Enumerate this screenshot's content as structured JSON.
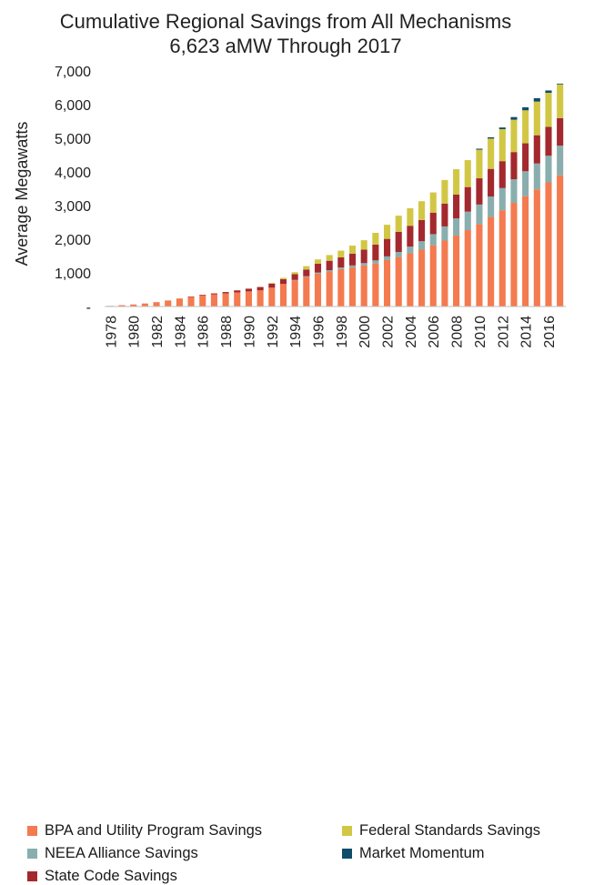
{
  "chart_data": {
    "type": "bar",
    "stacked": true,
    "title": "Cumulative Regional Savings from All Mechanisms",
    "subtitle": "6,623 aMW Through 2017",
    "xlabel": "",
    "ylabel": "Average Megawatts",
    "ylim": [
      0,
      7000
    ],
    "yticks": [
      0,
      1000,
      2000,
      3000,
      4000,
      5000,
      6000,
      7000
    ],
    "ytick_labels": [
      "-",
      "1,000",
      "2,000",
      "3,000",
      "4,000",
      "5,000",
      "6,000",
      "7,000"
    ],
    "grid": false,
    "legend_position": "bottom",
    "categories": [
      "1978",
      "1979",
      "1980",
      "1981",
      "1982",
      "1983",
      "1984",
      "1985",
      "1986",
      "1987",
      "1988",
      "1989",
      "1990",
      "1991",
      "1992",
      "1993",
      "1994",
      "1995",
      "1996",
      "1997",
      "1998",
      "1999",
      "2000",
      "2001",
      "2002",
      "2003",
      "2004",
      "2005",
      "2006",
      "2007",
      "2008",
      "2009",
      "2010",
      "2011",
      "2012",
      "2013",
      "2014",
      "2015",
      "2016",
      "2017"
    ],
    "xtick_labels": [
      "1978",
      "1980",
      "1982",
      "1984",
      "1986",
      "1988",
      "1990",
      "1992",
      "1994",
      "1996",
      "1998",
      "2000",
      "2002",
      "2004",
      "2006",
      "2008",
      "2010",
      "2012",
      "2014",
      "2016"
    ],
    "series": [
      {
        "name": "BPA and Utility Program Savings",
        "color": "#f47a4f",
        "values": [
          20,
          40,
          60,
          90,
          130,
          180,
          240,
          290,
          330,
          360,
          390,
          420,
          450,
          480,
          560,
          670,
          780,
          880,
          980,
          1040,
          1110,
          1160,
          1220,
          1280,
          1380,
          1470,
          1580,
          1690,
          1820,
          1960,
          2110,
          2270,
          2450,
          2660,
          2860,
          3080,
          3280,
          3480,
          3690,
          3900
        ]
      },
      {
        "name": "NEEA Alliance Savings",
        "color": "#8aaeae",
        "values": [
          0,
          0,
          0,
          0,
          0,
          0,
          0,
          0,
          0,
          0,
          0,
          0,
          0,
          0,
          0,
          0,
          10,
          20,
          30,
          40,
          50,
          60,
          70,
          90,
          110,
          150,
          200,
          250,
          330,
          420,
          510,
          550,
          580,
          610,
          660,
          700,
          740,
          770,
          790,
          880
        ]
      },
      {
        "name": "State Code Savings",
        "color": "#a3292f",
        "values": [
          0,
          0,
          0,
          0,
          0,
          0,
          0,
          10,
          20,
          30,
          40,
          60,
          80,
          100,
          120,
          140,
          170,
          200,
          260,
          280,
          300,
          350,
          400,
          470,
          520,
          600,
          620,
          630,
          640,
          680,
          710,
          730,
          780,
          820,
          800,
          810,
          830,
          840,
          860,
          820
        ]
      },
      {
        "name": "Federal Standards Savings",
        "color": "#d2c745",
        "values": [
          0,
          0,
          0,
          0,
          0,
          0,
          0,
          0,
          0,
          0,
          0,
          0,
          0,
          0,
          20,
          40,
          60,
          100,
          130,
          170,
          200,
          240,
          280,
          350,
          420,
          480,
          520,
          560,
          600,
          700,
          750,
          800,
          850,
          900,
          950,
          960,
          980,
          1000,
          1010,
          1000
        ]
      },
      {
        "name": "Market Momentum",
        "color": "#0f4d6a",
        "values": [
          0,
          0,
          0,
          0,
          0,
          0,
          0,
          0,
          0,
          0,
          0,
          0,
          0,
          0,
          0,
          0,
          0,
          0,
          0,
          0,
          0,
          0,
          0,
          0,
          0,
          0,
          0,
          0,
          0,
          0,
          0,
          0,
          30,
          40,
          50,
          80,
          90,
          100,
          70,
          23
        ]
      }
    ]
  }
}
